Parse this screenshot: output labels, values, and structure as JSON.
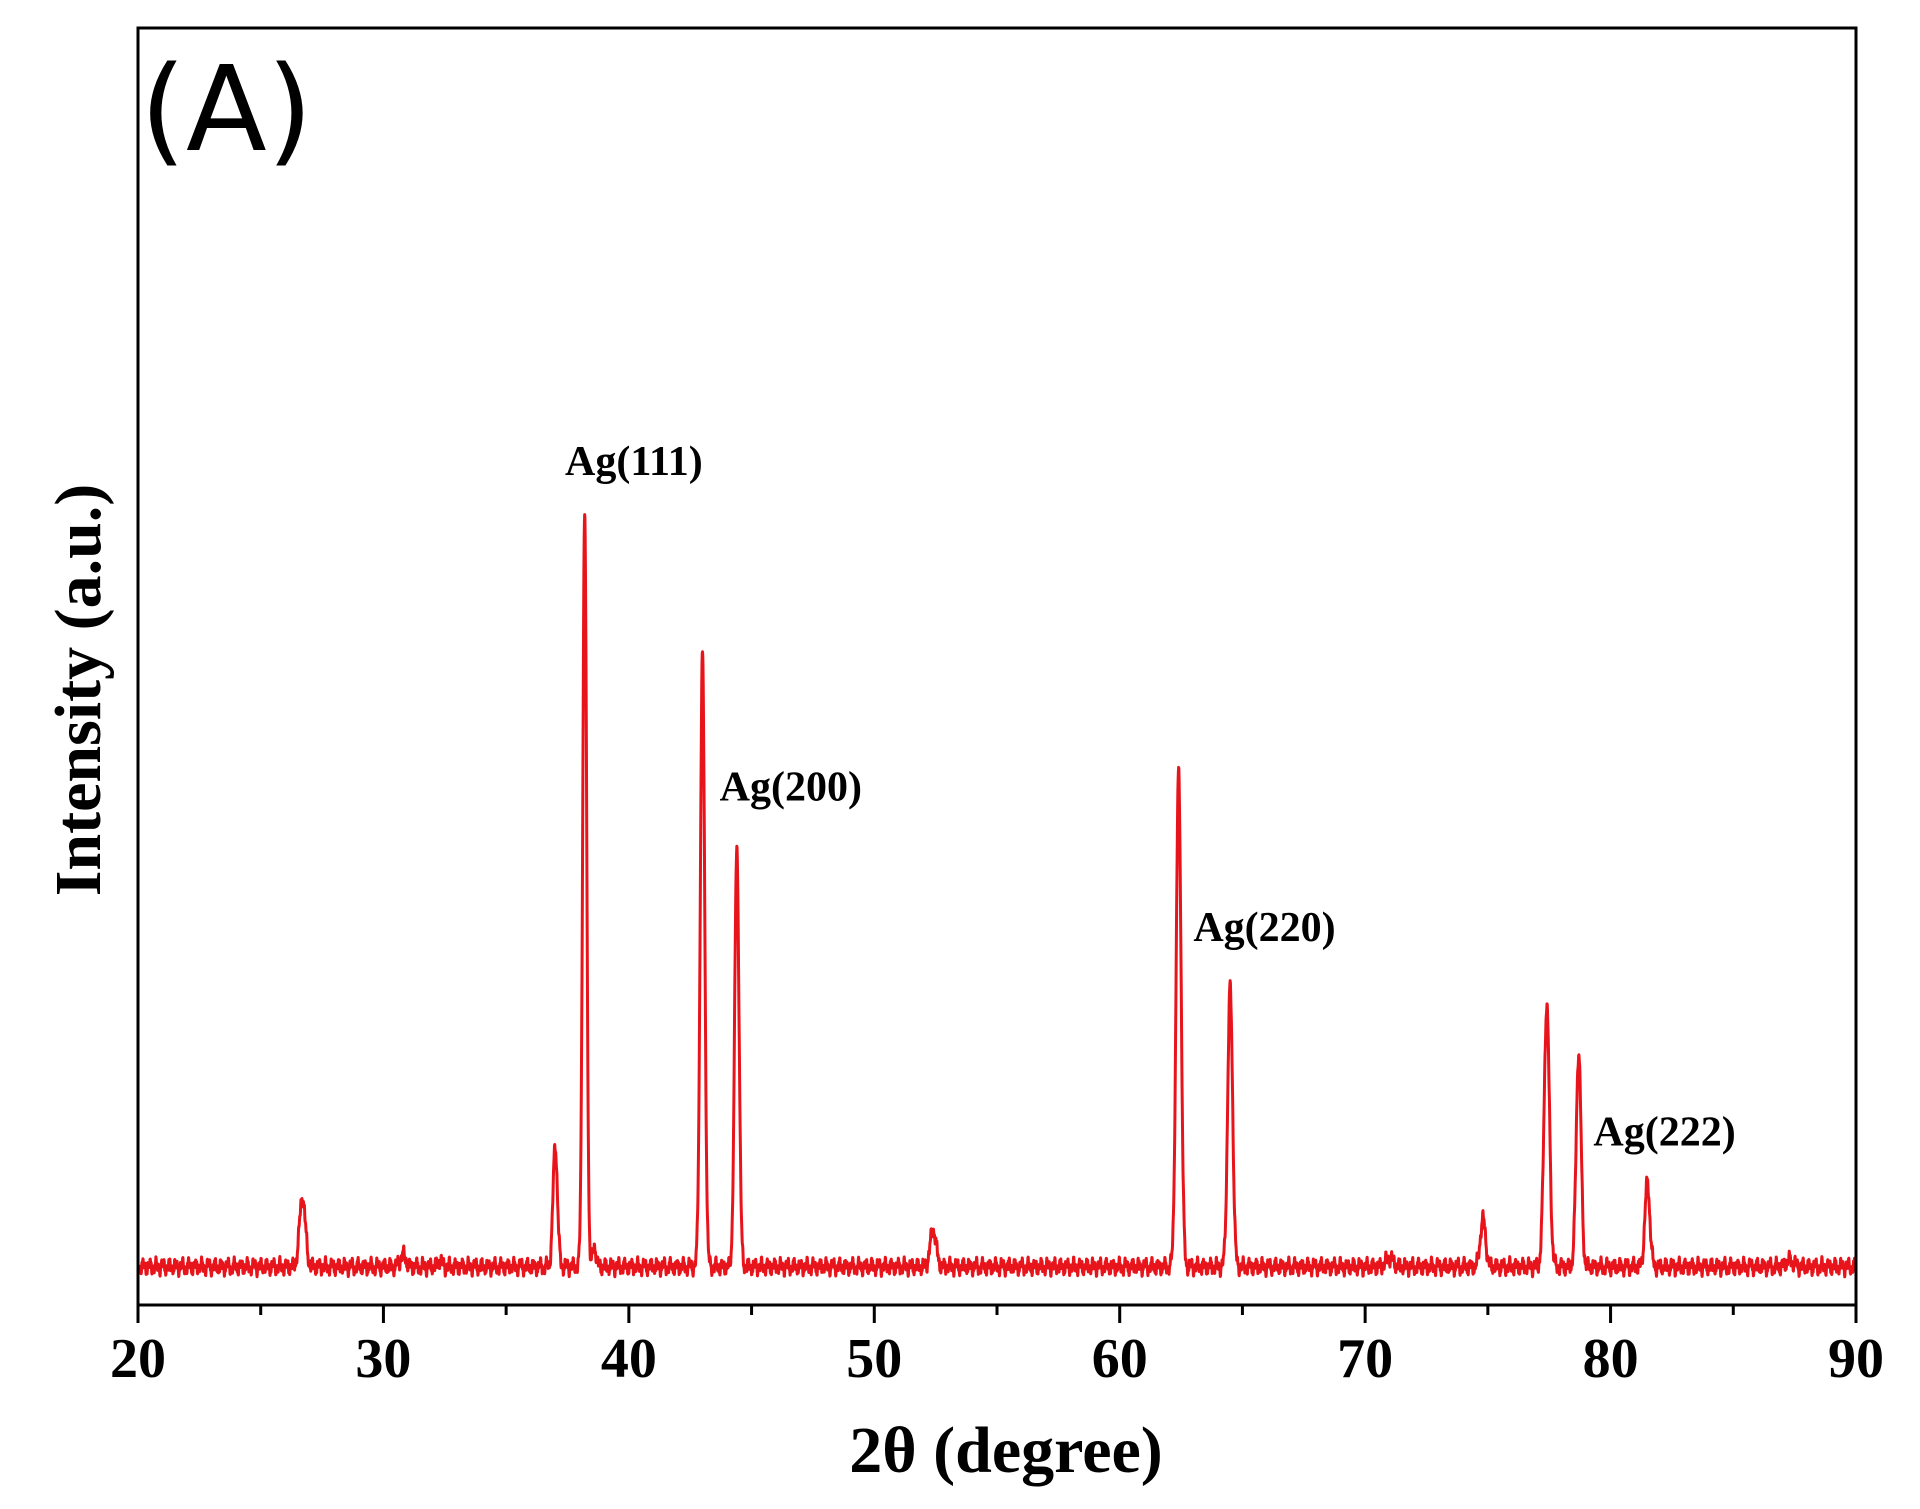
{
  "chart_data": {
    "type": "line",
    "panel_label": "(A)",
    "xlabel": "2θ (degree)",
    "ylabel": "Intensity (a.u.)",
    "xlim": [
      20,
      90
    ],
    "ylim": [
      0,
      100
    ],
    "x_ticks": [
      20,
      30,
      40,
      50,
      60,
      70,
      80,
      90
    ],
    "x_minor_step": 5,
    "y_ticks_shown": false,
    "grid": false,
    "line_color": "#e8141b",
    "baseline": 3.0,
    "peaks": [
      {
        "x": 26.7,
        "y": 8.5,
        "w": 0.12
      },
      {
        "x": 30.8,
        "y": 3.9,
        "w": 0.12
      },
      {
        "x": 32.3,
        "y": 3.5,
        "w": 0.08
      },
      {
        "x": 37.0,
        "y": 12.5,
        "w": 0.09
      },
      {
        "x": 38.2,
        "y": 61.8,
        "w": 0.08
      },
      {
        "x": 38.6,
        "y": 4.6,
        "w": 0.07
      },
      {
        "x": 43.0,
        "y": 50.8,
        "w": 0.09
      },
      {
        "x": 44.4,
        "y": 35.6,
        "w": 0.09
      },
      {
        "x": 52.4,
        "y": 5.9,
        "w": 0.12
      },
      {
        "x": 62.4,
        "y": 41.6,
        "w": 0.1
      },
      {
        "x": 64.5,
        "y": 24.8,
        "w": 0.1
      },
      {
        "x": 71.0,
        "y": 3.7,
        "w": 0.15
      },
      {
        "x": 74.8,
        "y": 6.7,
        "w": 0.11
      },
      {
        "x": 77.4,
        "y": 23.4,
        "w": 0.11
      },
      {
        "x": 78.7,
        "y": 19.8,
        "w": 0.1
      },
      {
        "x": 81.5,
        "y": 9.6,
        "w": 0.1
      },
      {
        "x": 87.3,
        "y": 3.5,
        "w": 0.15
      }
    ],
    "annotations": [
      {
        "text": "Ag(111)",
        "x": 37.4,
        "y": 65.0
      },
      {
        "text": "Ag(200)",
        "x": 43.7,
        "y": 39.5
      },
      {
        "text": "Ag(220)",
        "x": 63.0,
        "y": 28.5
      },
      {
        "text": "Ag(222)",
        "x": 79.3,
        "y": 12.5
      }
    ]
  }
}
